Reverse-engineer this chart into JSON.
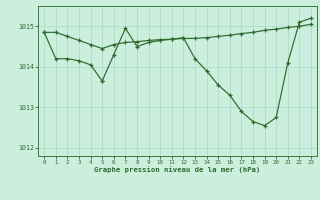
{
  "title": "Graphe pression niveau de la mer (hPa)",
  "background_color": "#cceedd",
  "grid_color": "#aaddcc",
  "line_color": "#2d6a2d",
  "xlim": [
    -0.5,
    23.5
  ],
  "ylim": [
    1011.8,
    1015.5
  ],
  "yticks": [
    1012,
    1013,
    1014,
    1015
  ],
  "xticks": [
    0,
    1,
    2,
    3,
    4,
    5,
    6,
    7,
    8,
    9,
    10,
    11,
    12,
    13,
    14,
    15,
    16,
    17,
    18,
    19,
    20,
    21,
    22,
    23
  ],
  "series1_x": [
    0,
    1,
    2,
    3,
    4,
    5,
    6,
    7,
    8,
    9,
    10,
    11,
    12,
    13,
    14,
    15,
    16,
    17,
    18,
    19,
    20,
    21,
    22,
    23
  ],
  "series1_y": [
    1014.85,
    1014.85,
    1014.75,
    1014.65,
    1014.55,
    1014.45,
    1014.55,
    1014.6,
    1014.62,
    1014.65,
    1014.67,
    1014.68,
    1014.7,
    1014.7,
    1014.72,
    1014.75,
    1014.78,
    1014.82,
    1014.85,
    1014.9,
    1014.93,
    1014.97,
    1015.0,
    1015.05
  ],
  "series2_x": [
    0,
    1,
    2,
    3,
    4,
    5,
    5,
    6,
    7,
    8,
    9,
    10,
    11,
    12,
    13,
    14,
    15,
    16,
    17,
    18,
    19,
    20,
    21,
    22,
    23
  ],
  "series2_y": [
    1014.85,
    1014.2,
    1014.2,
    1014.15,
    1014.05,
    1013.65,
    1013.65,
    1014.3,
    1014.95,
    1014.5,
    1014.6,
    1014.65,
    1014.68,
    1014.72,
    1014.2,
    1013.9,
    1013.55,
    1013.3,
    1012.9,
    1012.65,
    1012.55,
    1012.75,
    1014.1,
    1015.1,
    1015.2
  ]
}
